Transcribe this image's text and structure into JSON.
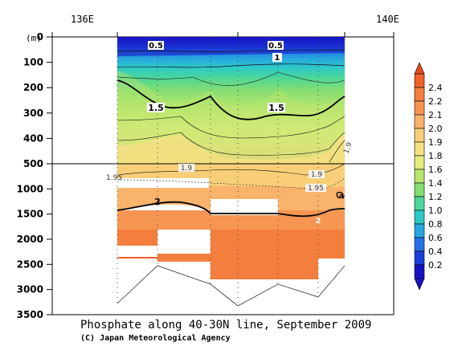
{
  "chart_data": {
    "type": "heatmap",
    "title": "Phosphate along 40-30N line, September 2009",
    "credit": "(C) Japan Meteorological Agency",
    "top_axis": {
      "ticks": [
        "136E",
        "140E"
      ]
    },
    "y_axis": {
      "unit": "(m)",
      "upper_ticks": [
        "0",
        "100",
        "200",
        "300",
        "400",
        "500"
      ],
      "lower_ticks": [
        "1000",
        "1500",
        "2000",
        "2500",
        "3000",
        "3500"
      ],
      "upper_range": [
        0,
        500
      ],
      "lower_range": [
        500,
        3500
      ],
      "break_depth": 500
    },
    "contour_labels": [
      "0.5",
      "0.5",
      "1",
      "1.5",
      "1.5",
      "1.9",
      "1.9",
      "1.9",
      "1.95",
      "1.95",
      "2",
      "2",
      "2"
    ],
    "colorbar": {
      "levels": [
        "2.4",
        "2.2",
        "2.1",
        "2.0",
        "1.9",
        "1.8",
        "1.6",
        "1.4",
        "1.2",
        "1.0",
        "0.8",
        "0.6",
        "0.4",
        "0.2"
      ],
      "colors": [
        "#f0602a",
        "#f47e3d",
        "#f79553",
        "#fab36a",
        "#f8cf78",
        "#f5df82",
        "#e4ec7c",
        "#b9e66e",
        "#84de72",
        "#4cd69a",
        "#2cc8c8",
        "#27a6e0",
        "#2670e6",
        "#1c3fdc",
        "#1512c4"
      ],
      "top_color": "#e84a1e",
      "bottom_color": "#1512c4"
    }
  }
}
